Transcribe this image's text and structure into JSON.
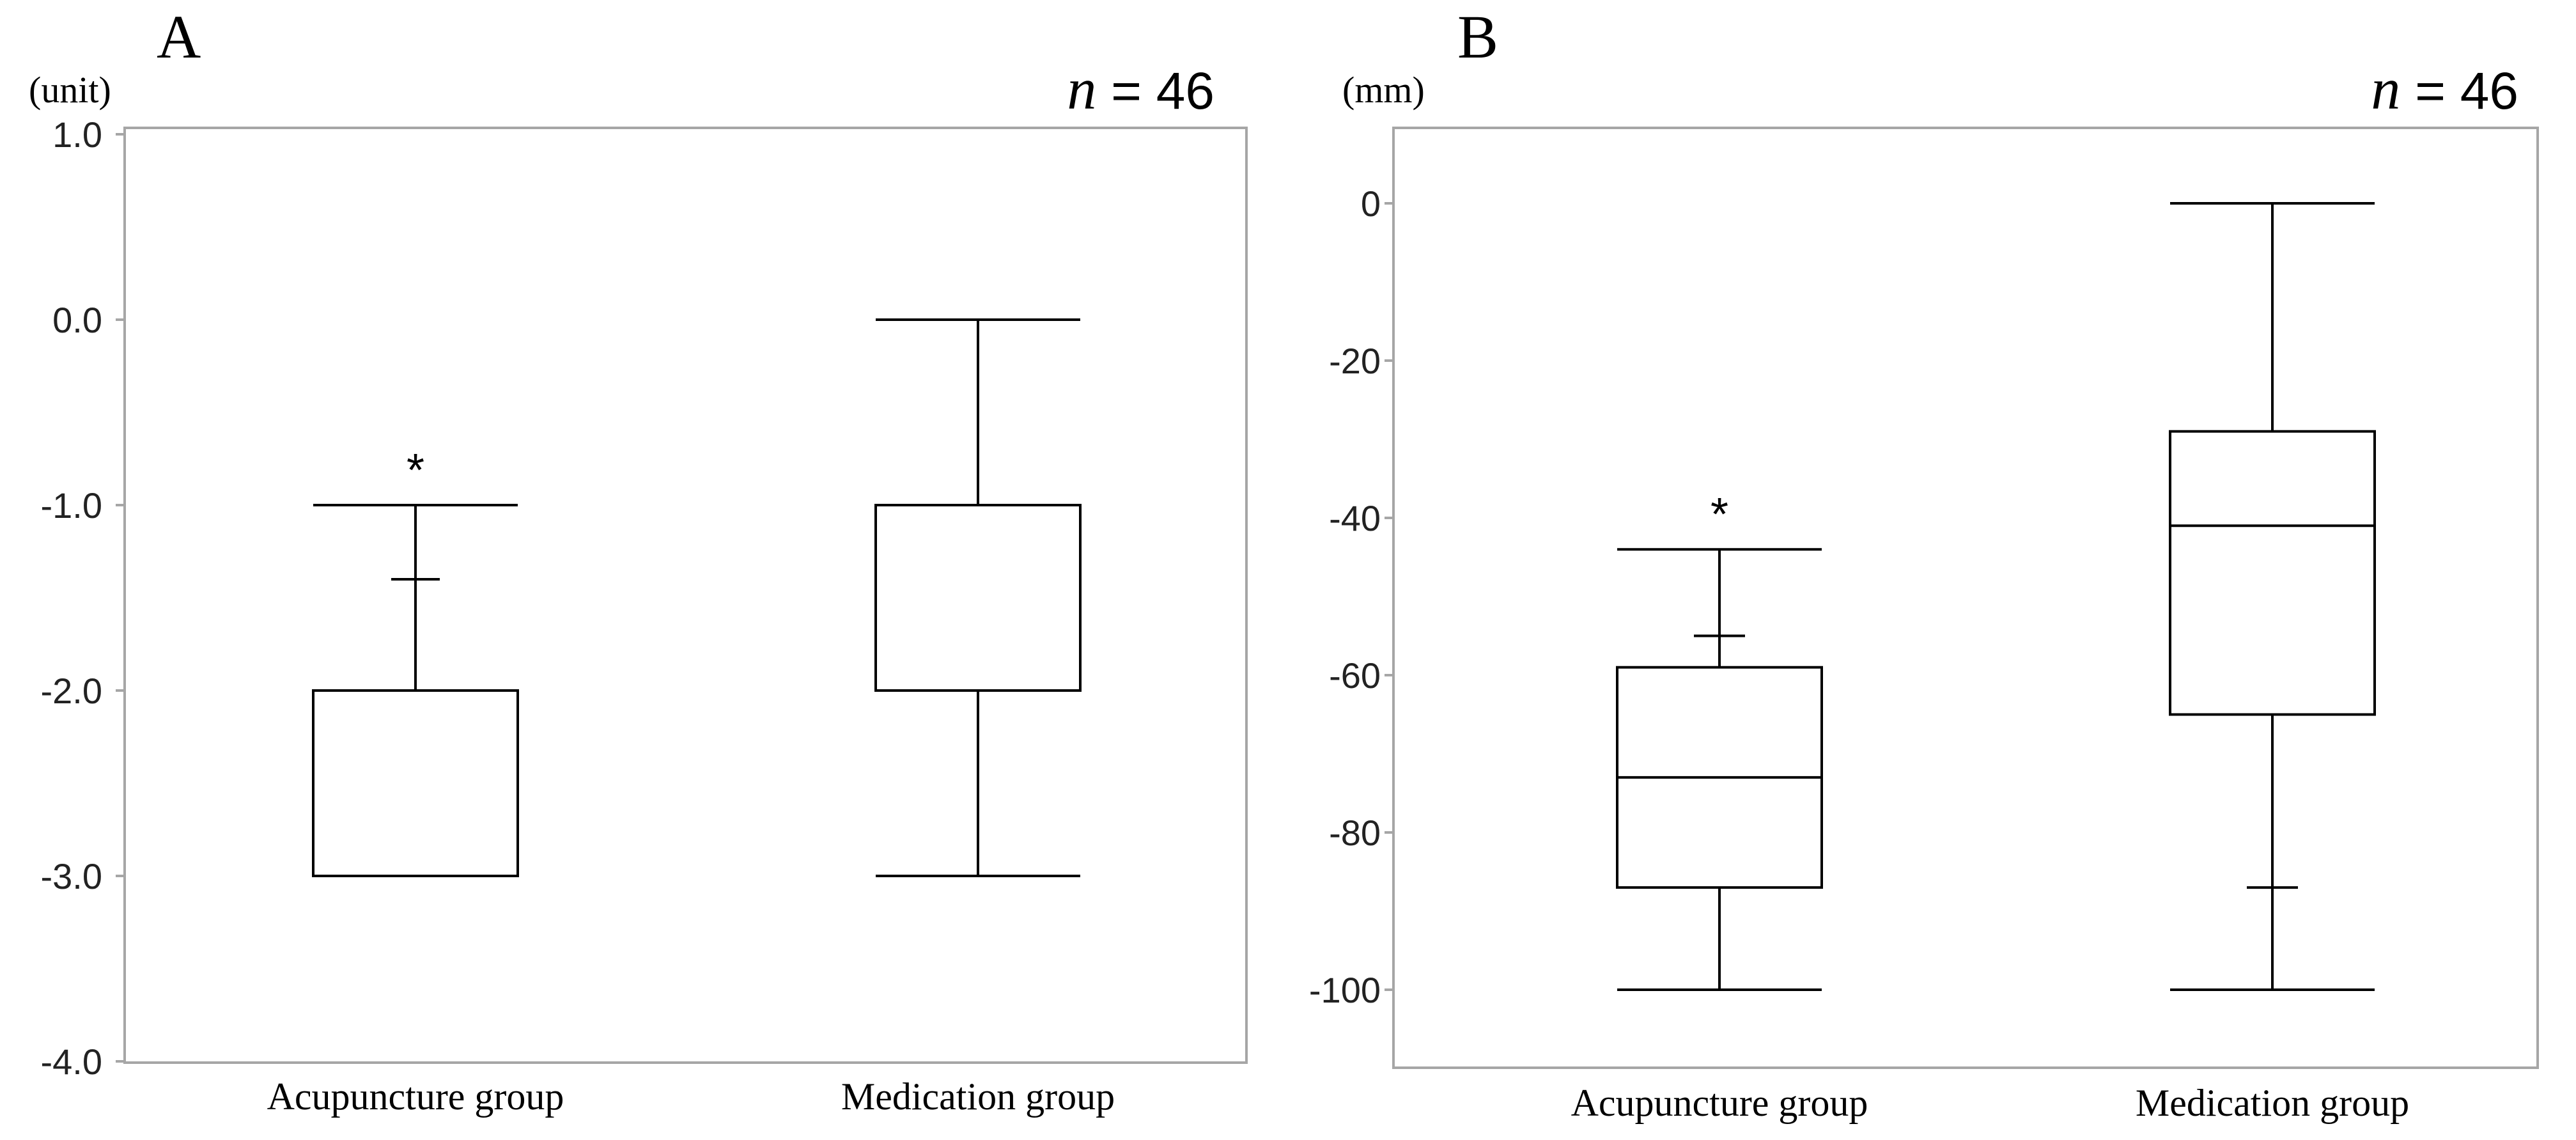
{
  "figure": {
    "background": "#ffffff",
    "line_color": "#000000",
    "frame_color": "#a6a6a6"
  },
  "chart_data": [
    {
      "panel": "A",
      "type": "boxplot",
      "title": "",
      "ylabel": "(unit)",
      "n_label": {
        "prefix": "n",
        "text": " = 46"
      },
      "ylim": [
        -4.0,
        1.0
      ],
      "yticks": [
        1.0,
        0.0,
        -1.0,
        -2.0,
        -3.0,
        -4.0
      ],
      "ytick_labels": [
        "1.0",
        "0.0",
        "-1.0",
        "-2.0",
        "-3.0",
        "-4.0"
      ],
      "categories": [
        "Acupuncture group",
        "Medication group"
      ],
      "boxes": [
        {
          "name": "Acupuncture group",
          "whisker_low": -3.0,
          "q1": -3.0,
          "median": -2.0,
          "q3": -2.0,
          "whisker_high": -1.0,
          "whisker_tick": -1.4,
          "significance": "*"
        },
        {
          "name": "Medication group",
          "whisker_low": -3.0,
          "q1": -2.0,
          "median": -2.0,
          "q3": -1.0,
          "whisker_high": 0.0,
          "whisker_tick": null,
          "significance": ""
        }
      ]
    },
    {
      "panel": "B",
      "type": "boxplot",
      "title": "",
      "ylabel": "(mm)",
      "n_label": {
        "prefix": "n",
        "text": " = 46"
      },
      "ylim": [
        -105,
        10
      ],
      "yticks": [
        0,
        -20,
        -40,
        -60,
        -80,
        -100
      ],
      "ytick_labels": [
        "0",
        "-20",
        "-40",
        "-60",
        "-80",
        "-100"
      ],
      "categories": [
        "Acupuncture group",
        "Medication group"
      ],
      "boxes": [
        {
          "name": "Acupuncture group",
          "whisker_low": -100,
          "q1": -87,
          "median": -73,
          "q3": -59,
          "whisker_high": -44,
          "whisker_tick": -55,
          "significance": "*"
        },
        {
          "name": "Medication group",
          "whisker_low": -100,
          "q1": -65,
          "median": -41,
          "q3": -29,
          "whisker_high": 0,
          "whisker_tick": -87,
          "significance": ""
        }
      ]
    }
  ]
}
